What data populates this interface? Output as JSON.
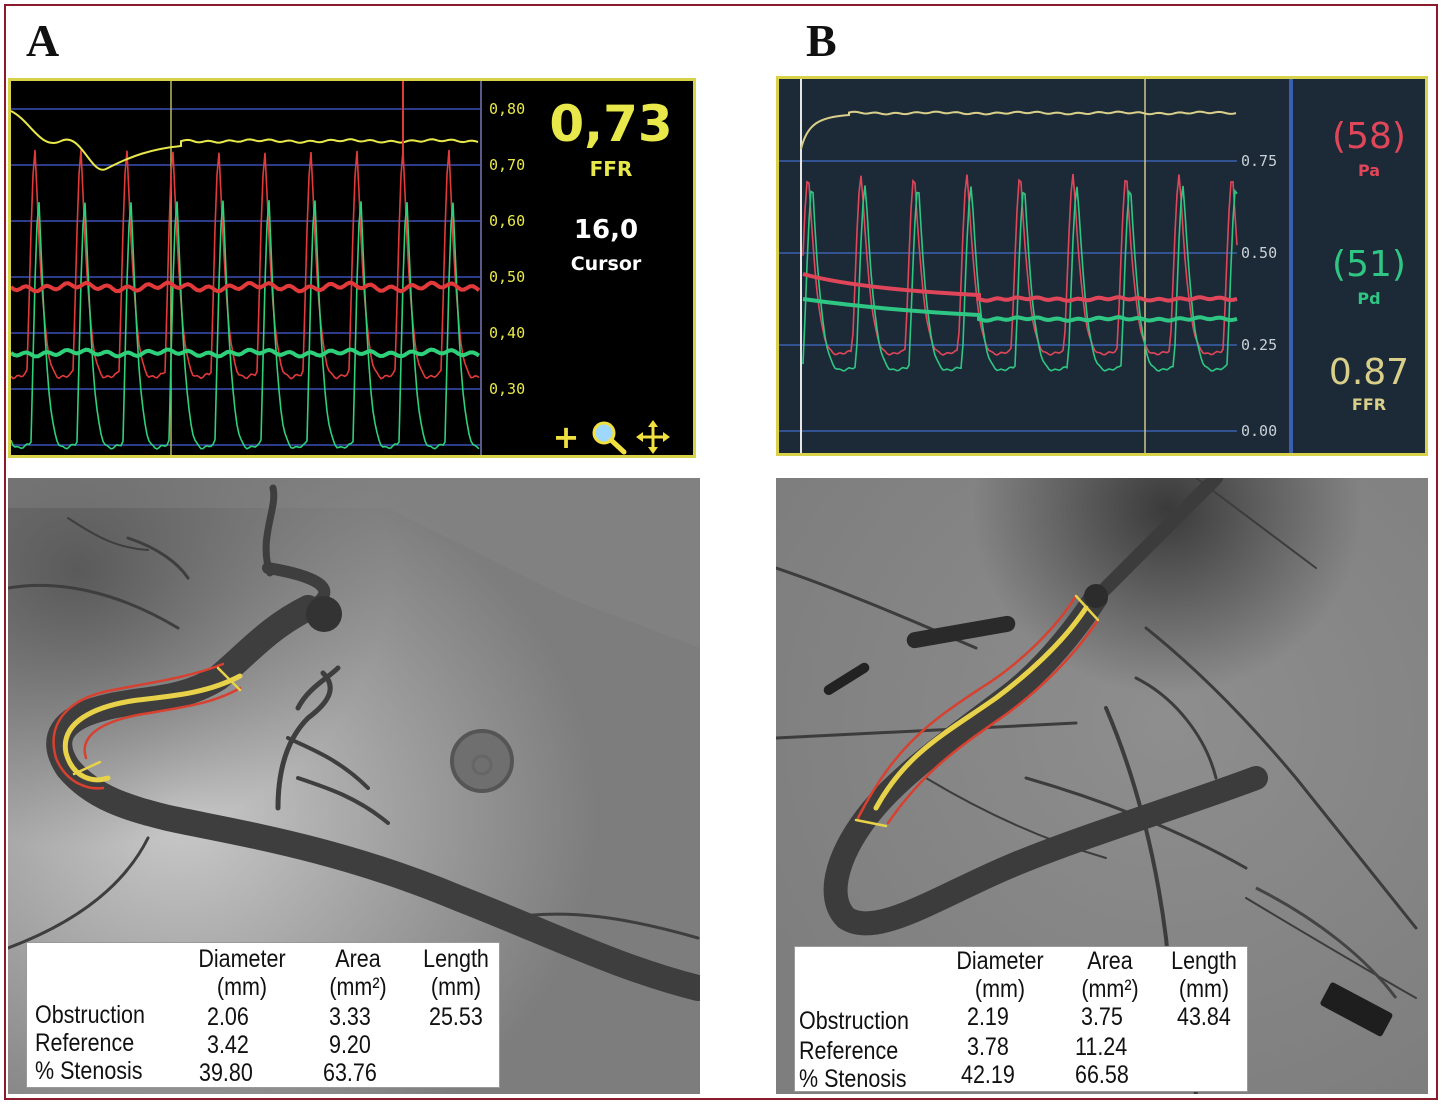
{
  "panels": [
    {
      "letter": "A",
      "tracing": {
        "y_ticks": [
          "0,80",
          "0,70",
          "0,60",
          "0,50",
          "0,40",
          "0,30"
        ],
        "ffr_value": "0,73",
        "ffr_label": "FFR",
        "cursor_value": "16,0",
        "cursor_label": "Cursor",
        "colors": {
          "ffr": "#e8e84a",
          "pa": "#e23a3a",
          "pd": "#2fd07a",
          "grid": "#3b4fb8",
          "bg": "#000000"
        },
        "icons": [
          "plus-icon",
          "magnifier-icon",
          "move-arrows-icon"
        ]
      },
      "qca": {
        "headers": [
          {
            "name": "Diameter",
            "unit": "(mm)"
          },
          {
            "name": "Area",
            "unit": "(mm²)"
          },
          {
            "name": "Length",
            "unit": "(mm)"
          }
        ],
        "rows": [
          {
            "label": "Obstruction",
            "diameter": "2.06",
            "area": "3.33",
            "length": "25.53"
          },
          {
            "label": "Reference",
            "diameter": "3.42",
            "area": "9.20",
            "length": ""
          },
          {
            "label": "% Stenosis",
            "diameter": "39.80",
            "area": "63.76",
            "length": ""
          }
        ]
      }
    },
    {
      "letter": "B",
      "tracing": {
        "y_ticks": [
          "0.75",
          "0.50",
          "0.25",
          "0.00"
        ],
        "pa_value": "(58)",
        "pa_label": "Pa",
        "pd_value": "(51)",
        "pd_label": "Pd",
        "ffr_value": "0.87",
        "ffr_label": "FFR",
        "colors": {
          "ffr": "#d9cf8a",
          "pa": "#e0465a",
          "pd": "#2fc683",
          "grid": "#3a5fb0",
          "bg": "#1b2a36"
        }
      },
      "qca": {
        "headers": [
          {
            "name": "Diameter",
            "unit": "(mm)"
          },
          {
            "name": "Area",
            "unit": "(mm²)"
          },
          {
            "name": "Length",
            "unit": "(mm)"
          }
        ],
        "rows": [
          {
            "label": "Obstruction",
            "diameter": "2.19",
            "area": "3.75",
            "length": "43.84"
          },
          {
            "label": "Reference",
            "diameter": "3.78",
            "area": "11.24",
            "length": ""
          },
          {
            "label": "% Stenosis",
            "diameter": "42.19",
            "area": "66.58",
            "length": ""
          }
        ]
      }
    }
  ]
}
